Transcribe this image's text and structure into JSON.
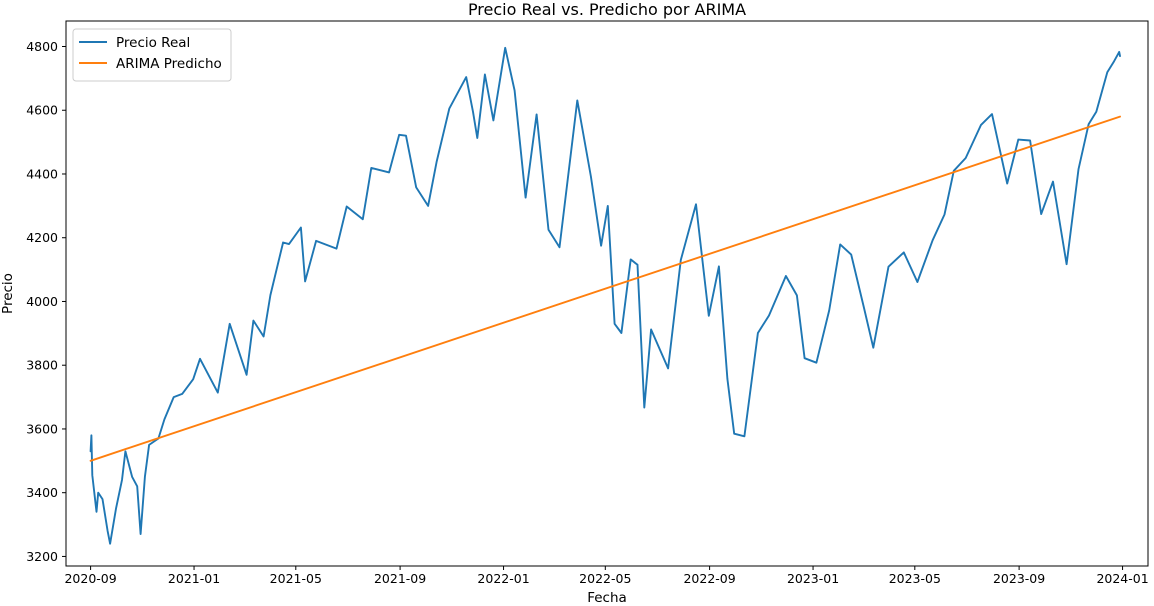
{
  "chart_data": {
    "type": "line",
    "title": "Precio Real vs. Predicho por ARIMA",
    "xlabel": "Fecha",
    "ylabel": "Precio",
    "x_range": [
      "2020-08-03",
      "2024-01-31"
    ],
    "ylim": [
      3170,
      4880
    ],
    "x_ticks": [
      "2020-09",
      "2021-01",
      "2021-05",
      "2021-09",
      "2022-01",
      "2022-05",
      "2022-09",
      "2023-01",
      "2023-05",
      "2023-09",
      "2024-01"
    ],
    "y_ticks": [
      3200,
      3400,
      3600,
      3800,
      4000,
      4200,
      4400,
      4600,
      4800
    ],
    "grid": false,
    "legend_position": "top-left",
    "series": [
      {
        "name": "Precio Real",
        "color": "#1f77b4",
        "points": [
          [
            "2020-09-01",
            3530
          ],
          [
            "2020-09-02",
            3580
          ],
          [
            "2020-09-03",
            3455
          ],
          [
            "2020-09-08",
            3340
          ],
          [
            "2020-09-10",
            3400
          ],
          [
            "2020-09-15",
            3380
          ],
          [
            "2020-09-21",
            3280
          ],
          [
            "2020-09-24",
            3240
          ],
          [
            "2020-10-01",
            3350
          ],
          [
            "2020-10-08",
            3440
          ],
          [
            "2020-10-12",
            3530
          ],
          [
            "2020-10-20",
            3450
          ],
          [
            "2020-10-26",
            3420
          ],
          [
            "2020-10-30",
            3270
          ],
          [
            "2020-11-04",
            3450
          ],
          [
            "2020-11-09",
            3550
          ],
          [
            "2020-11-20",
            3570
          ],
          [
            "2020-11-27",
            3630
          ],
          [
            "2020-12-08",
            3700
          ],
          [
            "2020-12-18",
            3710
          ],
          [
            "2020-12-31",
            3756
          ],
          [
            "2021-01-08",
            3820
          ],
          [
            "2021-01-29",
            3714
          ],
          [
            "2021-02-12",
            3930
          ],
          [
            "2021-03-04",
            3770
          ],
          [
            "2021-03-12",
            3940
          ],
          [
            "2021-03-24",
            3890
          ],
          [
            "2021-04-01",
            4020
          ],
          [
            "2021-04-16",
            4185
          ],
          [
            "2021-04-23",
            4180
          ],
          [
            "2021-05-07",
            4232
          ],
          [
            "2021-05-12",
            4063
          ],
          [
            "2021-05-25",
            4190
          ],
          [
            "2021-06-18",
            4166
          ],
          [
            "2021-06-30",
            4298
          ],
          [
            "2021-07-19",
            4258
          ],
          [
            "2021-07-29",
            4419
          ],
          [
            "2021-08-19",
            4405
          ],
          [
            "2021-08-31",
            4523
          ],
          [
            "2021-09-08",
            4520
          ],
          [
            "2021-09-20",
            4358
          ],
          [
            "2021-10-04",
            4300
          ],
          [
            "2021-10-14",
            4438
          ],
          [
            "2021-10-29",
            4605
          ],
          [
            "2021-11-18",
            4704
          ],
          [
            "2021-11-26",
            4595
          ],
          [
            "2021-12-01",
            4513
          ],
          [
            "2021-12-10",
            4712
          ],
          [
            "2021-12-20",
            4568
          ],
          [
            "2022-01-03",
            4796
          ],
          [
            "2022-01-14",
            4662
          ],
          [
            "2022-01-27",
            4326
          ],
          [
            "2022-02-09",
            4587
          ],
          [
            "2022-02-23",
            4225
          ],
          [
            "2022-03-08",
            4170
          ],
          [
            "2022-03-29",
            4631
          ],
          [
            "2022-04-14",
            4392
          ],
          [
            "2022-04-26",
            4175
          ],
          [
            "2022-05-04",
            4300
          ],
          [
            "2022-05-12",
            3930
          ],
          [
            "2022-05-20",
            3901
          ],
          [
            "2022-05-31",
            4132
          ],
          [
            "2022-06-08",
            4115
          ],
          [
            "2022-06-16",
            3667
          ],
          [
            "2022-06-24",
            3912
          ],
          [
            "2022-07-14",
            3790
          ],
          [
            "2022-07-29",
            4130
          ],
          [
            "2022-08-16",
            4305
          ],
          [
            "2022-08-31",
            3955
          ],
          [
            "2022-09-12",
            4110
          ],
          [
            "2022-09-22",
            3757
          ],
          [
            "2022-09-30",
            3585
          ],
          [
            "2022-10-12",
            3577
          ],
          [
            "2022-10-28",
            3901
          ],
          [
            "2022-11-10",
            3956
          ],
          [
            "2022-11-30",
            4080
          ],
          [
            "2022-12-13",
            4019
          ],
          [
            "2022-12-22",
            3822
          ],
          [
            "2023-01-05",
            3808
          ],
          [
            "2023-01-20",
            3972
          ],
          [
            "2023-02-02",
            4179
          ],
          [
            "2023-02-15",
            4147
          ],
          [
            "2023-03-02",
            3981
          ],
          [
            "2023-03-13",
            3855
          ],
          [
            "2023-03-31",
            4109
          ],
          [
            "2023-04-18",
            4154
          ],
          [
            "2023-05-04",
            4061
          ],
          [
            "2023-05-22",
            4192
          ],
          [
            "2023-06-05",
            4273
          ],
          [
            "2023-06-16",
            4410
          ],
          [
            "2023-06-30",
            4450
          ],
          [
            "2023-07-18",
            4554
          ],
          [
            "2023-07-31",
            4588
          ],
          [
            "2023-08-18",
            4370
          ],
          [
            "2023-08-31",
            4508
          ],
          [
            "2023-09-14",
            4505
          ],
          [
            "2023-09-27",
            4274
          ],
          [
            "2023-10-11",
            4376
          ],
          [
            "2023-10-27",
            4117
          ],
          [
            "2023-11-10",
            4415
          ],
          [
            "2023-11-22",
            4556
          ],
          [
            "2023-12-01",
            4595
          ],
          [
            "2023-12-14",
            4719
          ],
          [
            "2023-12-22",
            4754
          ],
          [
            "2023-12-28",
            4783
          ],
          [
            "2023-12-29",
            4770
          ]
        ]
      },
      {
        "name": "ARIMA Predicho",
        "color": "#ff7f0e",
        "points": [
          [
            "2020-09-01",
            3500
          ],
          [
            "2023-12-29",
            4580
          ]
        ]
      }
    ]
  }
}
